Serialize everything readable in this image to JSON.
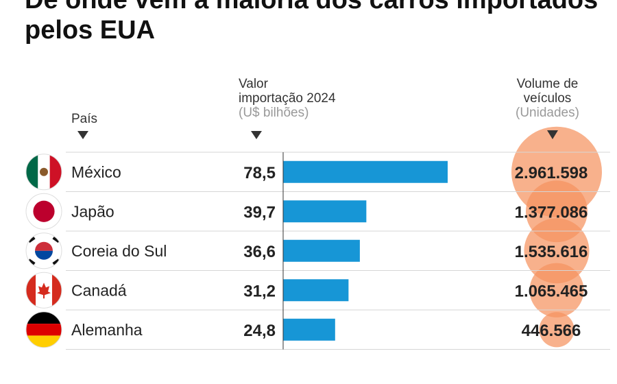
{
  "title": "De onde vem a maioria dos carros importados pelos EUA",
  "headers": {
    "country": "País",
    "value_line1": "Valor",
    "value_line2": "importação 2024",
    "value_unit": "(U$ bilhões)",
    "volume_line1": "Volume de",
    "volume_line2": "veículos",
    "volume_unit": "(Unidades)"
  },
  "colors": {
    "bar": "#1796d6",
    "bubble": "#f5935f",
    "text": "#222222",
    "divider": "#d6d6d6"
  },
  "chart_data": {
    "type": "bar",
    "categories": [
      "México",
      "Japão",
      "Coreia do Sul",
      "Canadá",
      "Alemanha"
    ],
    "flags": [
      "mexico-flag-icon",
      "japan-flag-icon",
      "south-korea-flag-icon",
      "canada-flag-icon",
      "germany-flag-icon"
    ],
    "value_labels": [
      "78,5",
      "39,7",
      "36,6",
      "31,2",
      "24,8"
    ],
    "values": [
      78.5,
      39.7,
      36.6,
      31.2,
      24.8
    ],
    "volume_labels": [
      "2.961.598",
      "1.377.086",
      "1.535.616",
      "1.065.465",
      "446.566"
    ],
    "volumes": [
      2961598,
      1377086,
      1535616,
      1065465,
      446566
    ]
  }
}
